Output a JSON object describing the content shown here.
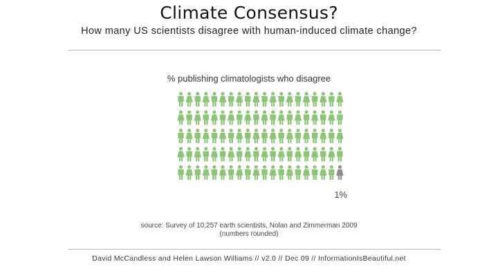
{
  "header": {
    "title": "Climate Consensus?",
    "subtitle": "How many US scientists disagree with human-induced climate change?"
  },
  "footer": {
    "source": "source: Survey of 10,257 earth scientists, Nolan and Zimmerman 2009",
    "note": "(numbers rounded)",
    "credit": "David McCandless and Helen Lawson Williams // v2.0 // Dec 09 // InformationIsBeautiful.net"
  },
  "colors": {
    "agree": "#8ec47a",
    "disagree": "#8c8c8c"
  },
  "chart_data": {
    "type": "pictogram",
    "title": "% publishing climatologists who disagree",
    "total_icons": 100,
    "rows": 5,
    "columns": 20,
    "series": [
      {
        "value": 99
      },
      {
        "name": "1%",
        "value": 1
      }
    ],
    "icon_semantics": "person-icon"
  }
}
